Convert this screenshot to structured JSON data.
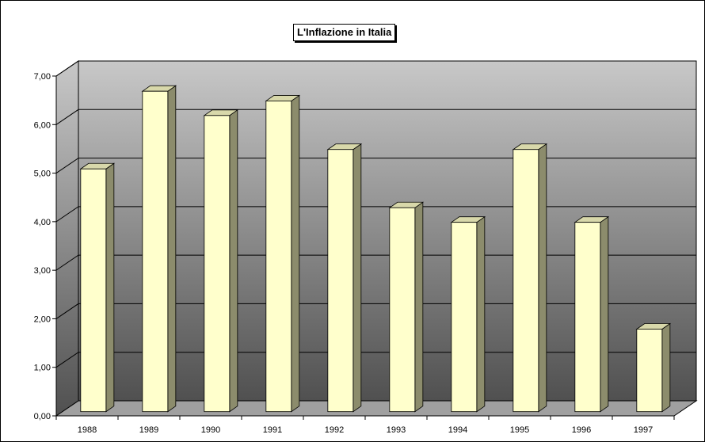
{
  "chart_data": {
    "type": "bar",
    "title": "L'Inflazione in Italia",
    "xlabel": "",
    "ylabel": "",
    "categories": [
      "1988",
      "1989",
      "1990",
      "1991",
      "1992",
      "1993",
      "1994",
      "1995",
      "1996",
      "1997"
    ],
    "values": [
      5.0,
      6.6,
      6.1,
      6.4,
      5.4,
      4.2,
      3.9,
      5.4,
      3.9,
      1.7
    ],
    "ylim": [
      0,
      7
    ],
    "yticks": [
      "0,00",
      "1,00",
      "2,00",
      "3,00",
      "4,00",
      "5,00",
      "6,00",
      "7,00"
    ],
    "grid": true,
    "legend": "none",
    "style": "3d-column",
    "colors": {
      "bar_front": "#ffffcc",
      "bar_side": "#8c8c6c",
      "bar_top": "#d8d8aa",
      "wall_top": "#c8c8c8",
      "wall_bottom": "#505050",
      "floor": "#a0a0a0"
    }
  }
}
